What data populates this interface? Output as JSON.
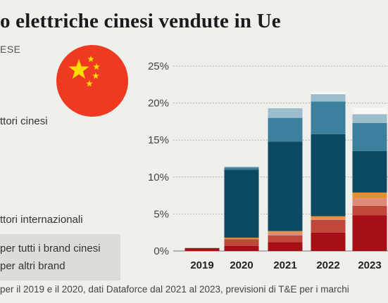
{
  "title": "o elettriche cinesi vendute in Ue",
  "subtitle": "ESE",
  "legend": {
    "chinese_makers": "ttori cinesi",
    "international_makers": "ttori internazionali",
    "all_chinese_brands": "per tutti i brand cinesi",
    "other_brands": "per altri brand"
  },
  "footer": "per il 2019 e il 2020, dati Dataforce dal 2021 al 2023, previsioni di T&E per i marchi",
  "icon": "china-flag-icon",
  "colors": {
    "background": "#efefec",
    "flag_red": "#ef3a22",
    "flag_star": "#ffdc00"
  },
  "chart_data": {
    "type": "bar",
    "stacked": true,
    "categories": [
      "2019",
      "2020",
      "2021",
      "2022",
      "2023"
    ],
    "ylim": [
      0,
      25
    ],
    "yticks": [
      "0%",
      "5%",
      "10%",
      "15%",
      "20%",
      "25%"
    ],
    "ytick_values": [
      0,
      5,
      10,
      15,
      20,
      25
    ],
    "grid": "dotted-horizontal",
    "series": [
      {
        "color": "#a50f15",
        "values": [
          0.4,
          0.7,
          1.2,
          2.5,
          4.8
        ]
      },
      {
        "color": "#c1463b",
        "values": [
          0.0,
          0.9,
          0.9,
          1.7,
          1.3
        ]
      },
      {
        "color": "#de8a78",
        "values": [
          0.0,
          0.0,
          0.4,
          0.2,
          1.0
        ]
      },
      {
        "color": "#ea8d2c",
        "values": [
          0.0,
          0.2,
          0.2,
          0.3,
          0.8
        ]
      },
      {
        "color": "#0c4a62",
        "values": [
          0.0,
          9.2,
          12.1,
          11.1,
          5.6
        ]
      },
      {
        "color": "#3c7f9c",
        "values": [
          0.0,
          0.3,
          3.2,
          4.4,
          3.8
        ]
      },
      {
        "color": "#9dbdcd",
        "values": [
          0.0,
          0.1,
          1.3,
          1.0,
          1.2
        ]
      },
      {
        "color": "#f7f7f4",
        "values": [
          0.0,
          0.0,
          0.0,
          0.3,
          0.9
        ]
      }
    ]
  }
}
